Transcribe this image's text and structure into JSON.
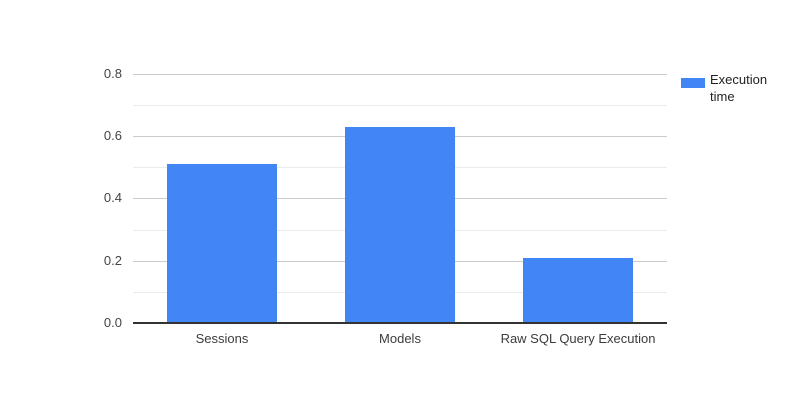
{
  "chart_data": {
    "type": "bar",
    "title": "",
    "xlabel": "",
    "ylabel": "",
    "categories": [
      "Sessions",
      "Models",
      "Raw SQL Query Execution"
    ],
    "series": [
      {
        "name": "Execution time",
        "values": [
          0.51,
          0.63,
          0.21
        ]
      }
    ],
    "ylim": [
      0,
      0.8
    ],
    "ytick_labels": [
      "0.0",
      "0.2",
      "0.4",
      "0.6",
      "0.8"
    ],
    "minor_gridline_step": 0.1,
    "grid": true,
    "legend_position": "right"
  },
  "legend": {
    "label": "Execution time"
  },
  "colors": {
    "bar": "#4285f4",
    "legend_swatch": "#4285f4",
    "major_gridline": "#cccccc",
    "minor_gridline": "#ebebeb",
    "baseline": "#333333",
    "tick_label": "#444444",
    "category_label": "#3c3c3c",
    "legend_label": "#222222",
    "background": "#ffffff"
  }
}
